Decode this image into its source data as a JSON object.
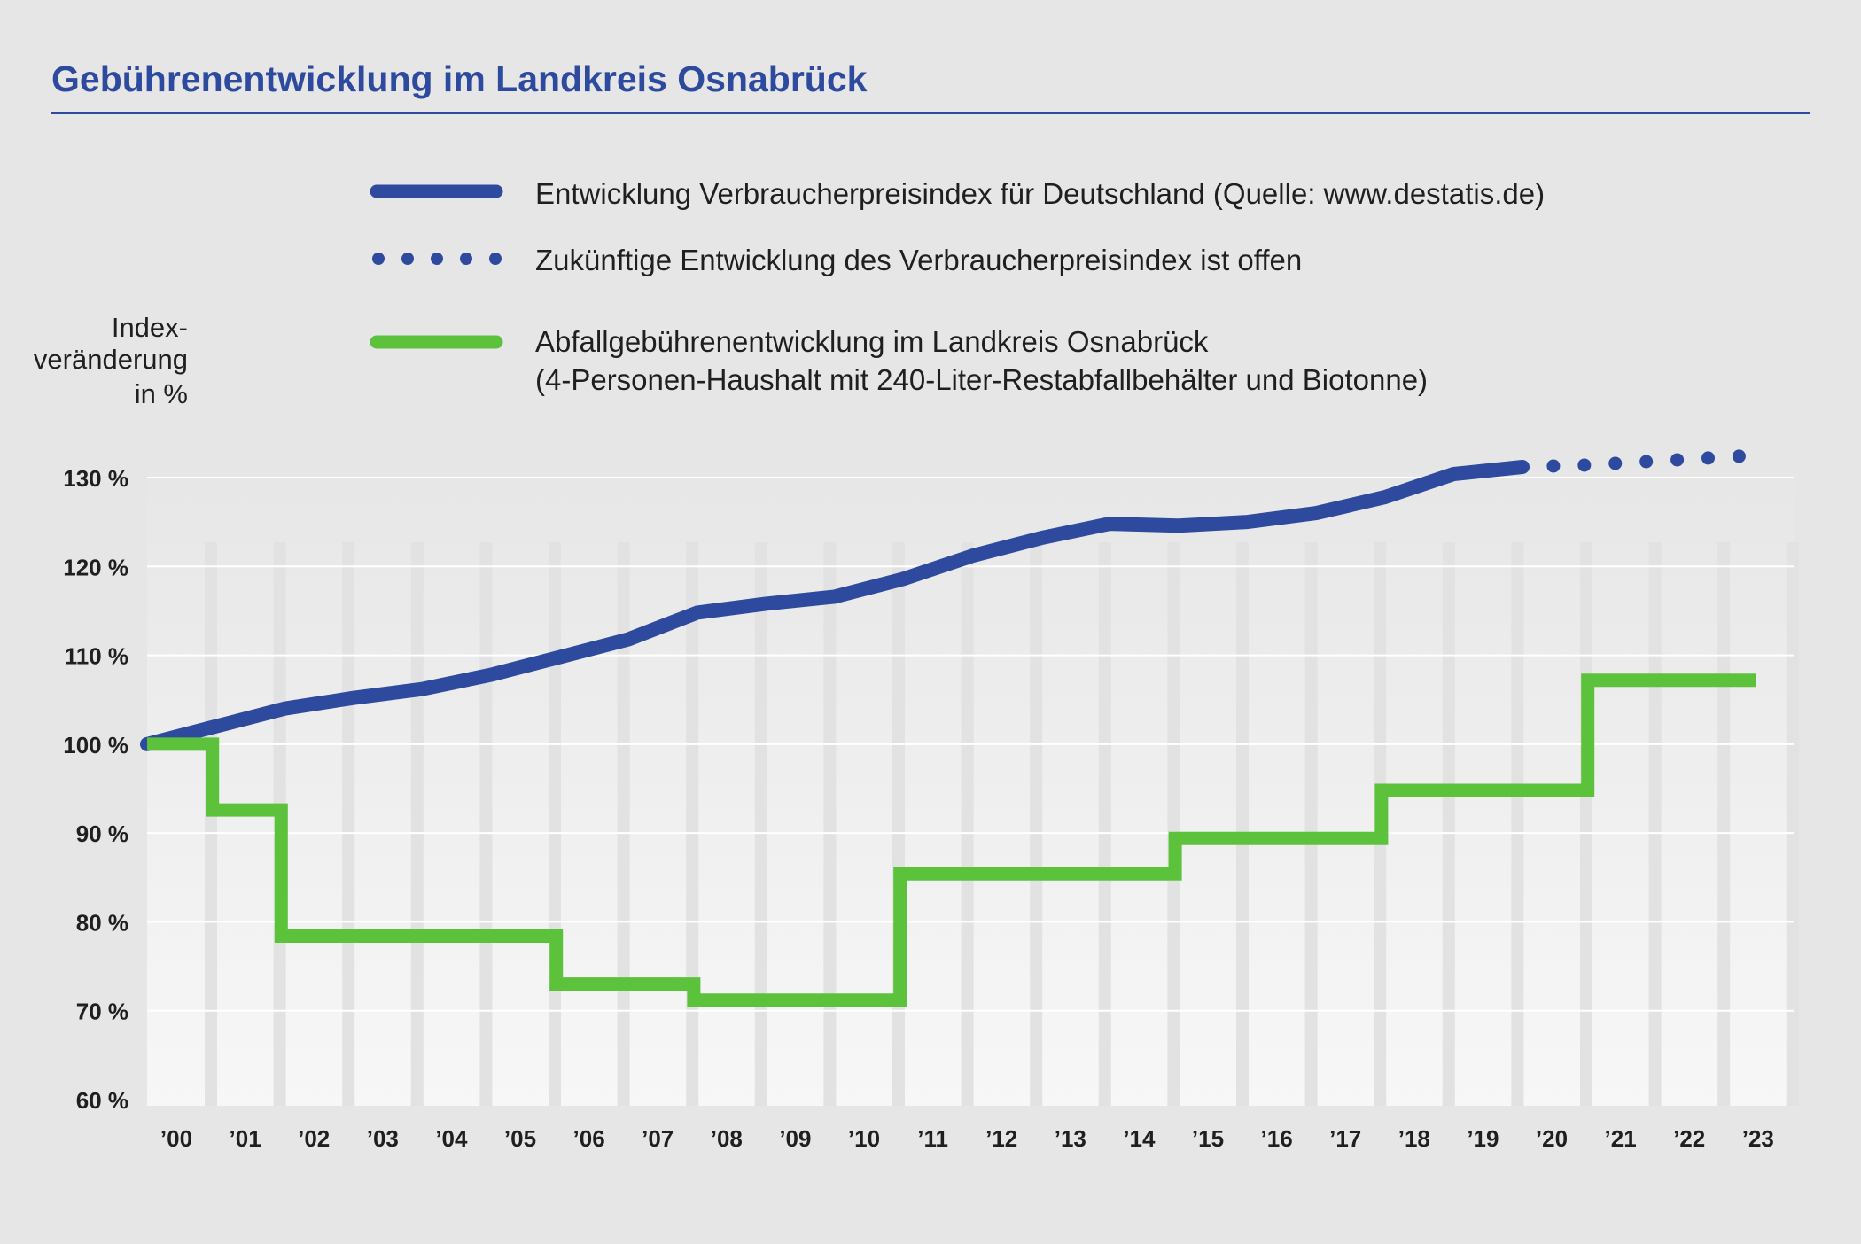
{
  "colors": {
    "background": "#e6e6e6",
    "title": "#2e4a9e",
    "cpi": "#2e4a9e",
    "fees": "#5cc13b",
    "gridline": "#ffffff",
    "band": "#e2e2e2"
  },
  "chart_data": {
    "type": "line",
    "title": "Gebührenentwicklung im Landkreis Osnabrück",
    "ylabel": [
      "Index-",
      "veränderung",
      "in %"
    ],
    "ylim": [
      60,
      130
    ],
    "yticks": [
      60,
      70,
      80,
      90,
      100,
      110,
      120,
      130
    ],
    "ytick_labels": [
      "60 %",
      "70 %",
      "80 %",
      "90 %",
      "100 %",
      "110 %",
      "120 %",
      "130 %"
    ],
    "categories": [
      "’00",
      "’01",
      "’02",
      "’03",
      "’04",
      "’05",
      "’06",
      "’07",
      "’08",
      "’09",
      "’10",
      "’11",
      "’12",
      "’13",
      "’14",
      "’15",
      "’16",
      "’17",
      "’18",
      "’19",
      "’20",
      "’21",
      "’22",
      "’23"
    ],
    "grid": true,
    "legend_position": "top",
    "legend": [
      {
        "label": "Entwicklung Verbraucherpreisindex für Deutschland (Quelle: www.destatis.de)",
        "style": "solid",
        "color": "#2e4a9e"
      },
      {
        "label": "Zukünftige Entwicklung des Verbraucherpreisindex ist offen",
        "style": "dotted",
        "color": "#2e4a9e"
      },
      {
        "label": "Abfallgebührenentwicklung im Landkreis Osnabrück",
        "label2": "(4-Personen-Haushalt mit 240-Liter-Restabfallbehälter und Biotonne)",
        "style": "solid",
        "color": "#5cc13b"
      }
    ],
    "series": [
      {
        "name": "Entwicklung Verbraucherpreisindex für Deutschland (Quelle: www.destatis.de)",
        "style": "solid",
        "color": "#2e4a9e",
        "x": [
          0,
          1,
          2,
          3,
          4,
          5,
          6,
          7,
          8,
          9,
          10,
          11,
          12,
          13,
          14,
          15,
          16,
          17,
          18,
          19,
          20
        ],
        "values": [
          100,
          102,
          104,
          105.2,
          106.2,
          107.8,
          109.8,
          111.8,
          114.8,
          115.8,
          116.6,
          118.6,
          121.2,
          123.2,
          124.8,
          124.6,
          125,
          126,
          127.8,
          130.4,
          131.2
        ]
      },
      {
        "name": "Zukünftige Entwicklung des Verbraucherpreisindex ist offen",
        "style": "dotted",
        "color": "#2e4a9e",
        "x": [
          20,
          20.45,
          20.9,
          21.35,
          21.8,
          22.25,
          22.7,
          23.15
        ],
        "values": [
          131.2,
          131.3,
          131.4,
          131.6,
          131.8,
          132,
          132.2,
          132.4
        ]
      },
      {
        "name": "Abfallgebührenentwicklung im Landkreis Osnabrück",
        "style": "step",
        "color": "#5cc13b",
        "x": [
          0,
          0.95,
          0.95,
          1.95,
          1.95,
          5.95,
          5.95,
          7.95,
          7.95,
          10.95,
          10.95,
          14.95,
          14.95,
          17.95,
          17.95,
          20.95,
          20.95,
          23.4
        ],
        "values": [
          100,
          100,
          92.6,
          92.6,
          78.4,
          78.4,
          73,
          73,
          71.2,
          71.2,
          85.4,
          85.4,
          89.4,
          89.4,
          94.8,
          94.8,
          107.2,
          107.2
        ]
      }
    ]
  }
}
